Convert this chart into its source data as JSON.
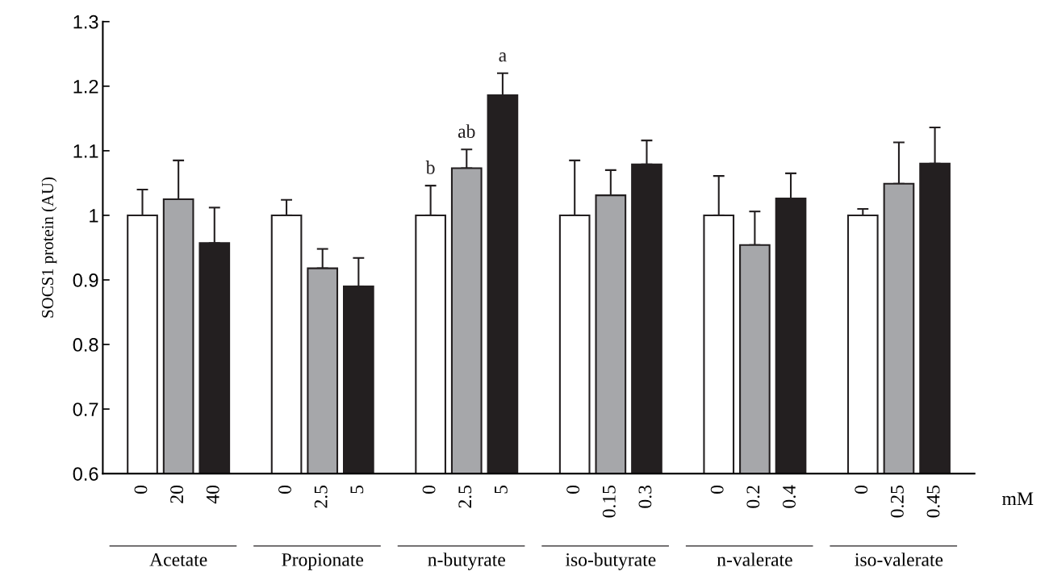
{
  "chart_data": {
    "type": "bar",
    "ylabel": "SOCS1 protein (AU)",
    "categories": [
      "0",
      "20",
      "40",
      null,
      "0",
      "2.5",
      "5",
      null,
      "0",
      "2.5",
      "5",
      null,
      "0",
      "0.15",
      "0.3",
      null,
      "0",
      "0.2",
      "0.4",
      null,
      "0",
      "0.25",
      "0.45"
    ],
    "values": [
      1.0,
      1.025,
      0.957,
      null,
      1.0,
      0.918,
      0.89,
      null,
      1.0,
      1.073,
      1.186,
      null,
      1.0,
      1.031,
      1.079,
      null,
      1.0,
      0.954,
      1.026,
      null,
      1.0,
      1.049,
      1.08
    ],
    "colors": [
      "#ffffff",
      "#a6a7aa",
      "#231f20",
      null,
      "#ffffff",
      "#a6a7aa",
      "#231f20",
      null,
      "#ffffff",
      "#a6a7aa",
      "#231f20",
      null,
      "#ffffff",
      "#a6a7aa",
      "#231f20",
      null,
      "#ffffff",
      "#a6a7aa",
      "#231f20",
      null,
      "#ffffff",
      "#a6a7aa",
      "#231f20"
    ],
    "errors": [
      [
        1.0,
        1.04
      ],
      [
        1.025,
        1.085
      ],
      [
        0.957,
        1.012
      ],
      null,
      [
        1.0,
        1.024
      ],
      [
        0.918,
        0.948
      ],
      [
        0.89,
        0.934
      ],
      null,
      [
        1.0,
        1.046
      ],
      [
        1.073,
        1.102
      ],
      [
        1.186,
        1.22
      ],
      null,
      [
        1.0,
        1.085
      ],
      [
        1.031,
        1.07
      ],
      [
        1.079,
        1.116
      ],
      null,
      [
        1.0,
        1.061
      ],
      [
        0.954,
        1.006
      ],
      [
        1.026,
        1.065
      ],
      null,
      [
        1.0,
        1.01
      ],
      [
        1.049,
        1.113
      ],
      [
        1.08,
        1.136
      ]
    ],
    "value_labels": [
      null,
      null,
      null,
      null,
      null,
      null,
      null,
      null,
      "b",
      "ab",
      "a",
      null,
      null,
      null,
      null,
      null,
      null,
      null,
      null,
      null,
      null,
      null,
      null
    ],
    "ylim": [
      0.6,
      1.3
    ],
    "yticks": [
      0.6,
      0.7,
      0.8,
      0.9,
      1,
      1.1,
      1.2,
      1.3
    ],
    "annotations": [
      "Acetate",
      "Propionate",
      "n-butyrate",
      "iso-butyrate",
      "n-valerate",
      "iso-valerate",
      "mM"
    ]
  }
}
